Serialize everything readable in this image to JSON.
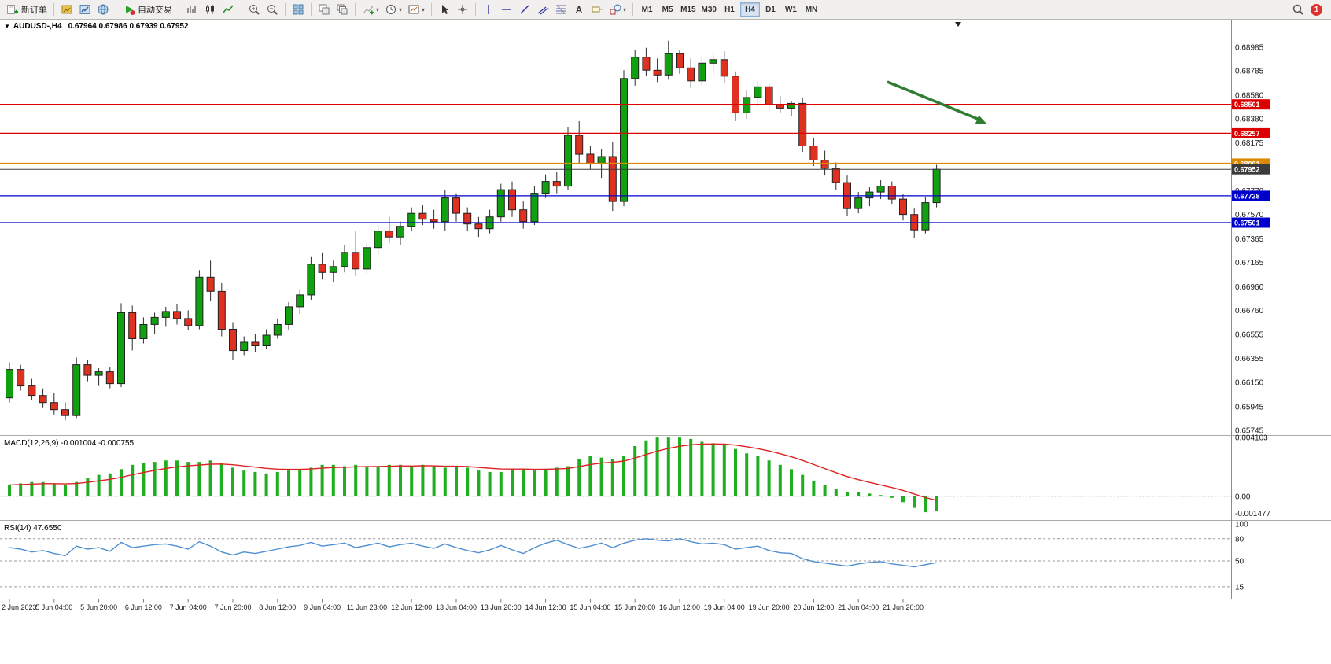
{
  "toolbar": {
    "new_order": "新订单",
    "auto_trading": "自动交易",
    "timeframes": [
      "M1",
      "M5",
      "M15",
      "M30",
      "H1",
      "H4",
      "D1",
      "W1",
      "MN"
    ],
    "active_timeframe": "H4",
    "notification_count": "1"
  },
  "chart": {
    "title": "AUDUSD-,H4",
    "ohlc": "0.67964 0.67986 0.67939 0.67952",
    "arrow_color": "#2e7d32",
    "axis_labels": [
      "0.68985",
      "0.68785",
      "0.68580",
      "0.68380",
      "0.68175",
      "0.67975",
      "0.67770",
      "0.67570",
      "0.67365",
      "0.67165",
      "0.66960",
      "0.66760",
      "0.66555",
      "0.66355",
      "0.66150",
      "0.65945",
      "0.65745"
    ],
    "levels": [
      {
        "name": "resistance-1",
        "price": 0.68501,
        "label": "0.68501",
        "color": "#dd0000",
        "width": 1.3
      },
      {
        "name": "resistance-2",
        "price": 0.68257,
        "label": "0.68257",
        "color": "#dd0000",
        "width": 1.3
      },
      {
        "name": "pivot",
        "price": 0.68001,
        "label": "0.68001",
        "color": "#d98a00",
        "width": 2
      },
      {
        "name": "current-price",
        "price": 0.67952,
        "label": "0.67952",
        "color": "#3c3c3c",
        "width": 1
      },
      {
        "name": "support-1",
        "price": 0.67728,
        "label": "0.67728",
        "color": "#0000cc",
        "width": 1.3
      },
      {
        "name": "support-2",
        "price": 0.67501,
        "label": "0.67501",
        "color": "#0000cc",
        "width": 1.3
      }
    ],
    "time_labels": [
      "2 Jun 2023",
      "5 Jun 04:00",
      "5 Jun 20:00",
      "6 Jun 12:00",
      "7 Jun 04:00",
      "7 Jun 20:00",
      "8 Jun 12:00",
      "9 Jun 04:00",
      "11 Jun 23:00",
      "12 Jun 12:00",
      "13 Jun 04:00",
      "13 Jun 20:00",
      "14 Jun 12:00",
      "15 Jun 04:00",
      "15 Jun 20:00",
      "16 Jun 12:00",
      "19 Jun 04:00",
      "19 Jun 20:00",
      "20 Jun 12:00",
      "21 Jun 04:00",
      "21 Jun 20:00"
    ]
  },
  "macd_panel": {
    "label": "MACD(12,26,9) -0.001004 -0.000755",
    "axis": [
      "0.004103",
      "0.00",
      "-0.001477"
    ]
  },
  "rsi_panel": {
    "label": "RSI(14) 47.6550",
    "axis": [
      "100",
      "80",
      "50",
      "15"
    ]
  },
  "chart_data": {
    "type": "candlestick",
    "symbol": "AUDUSD",
    "timeframe": "H4",
    "ylim_main": [
      0.65725,
      0.69211
    ],
    "candles": [
      [
        0.6602,
        0.6632,
        0.6598,
        0.6626
      ],
      [
        0.6626,
        0.663,
        0.6608,
        0.6612
      ],
      [
        0.6612,
        0.6618,
        0.66,
        0.6604
      ],
      [
        0.6604,
        0.661,
        0.6594,
        0.6598
      ],
      [
        0.6598,
        0.6606,
        0.6588,
        0.6592
      ],
      [
        0.6592,
        0.6598,
        0.6583,
        0.6587
      ],
      [
        0.6587,
        0.6636,
        0.6585,
        0.663
      ],
      [
        0.663,
        0.6634,
        0.6616,
        0.6621
      ],
      [
        0.6621,
        0.6627,
        0.6612,
        0.6624
      ],
      [
        0.6624,
        0.6628,
        0.661,
        0.6614
      ],
      [
        0.6614,
        0.6682,
        0.6611,
        0.6674
      ],
      [
        0.6674,
        0.668,
        0.6642,
        0.6652
      ],
      [
        0.6652,
        0.667,
        0.6648,
        0.6664
      ],
      [
        0.6664,
        0.6674,
        0.6656,
        0.667
      ],
      [
        0.667,
        0.6679,
        0.6662,
        0.6675
      ],
      [
        0.6675,
        0.6681,
        0.6664,
        0.6669
      ],
      [
        0.6669,
        0.6676,
        0.6659,
        0.6663
      ],
      [
        0.6663,
        0.671,
        0.666,
        0.6704
      ],
      [
        0.6704,
        0.6718,
        0.6684,
        0.6692
      ],
      [
        0.6692,
        0.6699,
        0.6654,
        0.666
      ],
      [
        0.666,
        0.6666,
        0.6634,
        0.6642
      ],
      [
        0.6642,
        0.6654,
        0.6638,
        0.6649
      ],
      [
        0.6649,
        0.6656,
        0.6641,
        0.6646
      ],
      [
        0.6646,
        0.666,
        0.6643,
        0.6655
      ],
      [
        0.6655,
        0.6669,
        0.6652,
        0.6664
      ],
      [
        0.6664,
        0.6683,
        0.6659,
        0.6679
      ],
      [
        0.6679,
        0.6694,
        0.6673,
        0.6689
      ],
      [
        0.6689,
        0.6721,
        0.6685,
        0.6715
      ],
      [
        0.6715,
        0.6725,
        0.6702,
        0.6708
      ],
      [
        0.6708,
        0.6718,
        0.67,
        0.6713
      ],
      [
        0.6713,
        0.6731,
        0.6708,
        0.6725
      ],
      [
        0.6725,
        0.6743,
        0.6705,
        0.6711
      ],
      [
        0.6711,
        0.6733,
        0.6707,
        0.6729
      ],
      [
        0.6729,
        0.6748,
        0.6723,
        0.6743
      ],
      [
        0.6743,
        0.6755,
        0.6733,
        0.6738
      ],
      [
        0.6738,
        0.6751,
        0.6731,
        0.6747
      ],
      [
        0.6747,
        0.6763,
        0.6743,
        0.6758
      ],
      [
        0.6758,
        0.6765,
        0.6748,
        0.6753
      ],
      [
        0.6753,
        0.6761,
        0.6745,
        0.6751
      ],
      [
        0.6751,
        0.6778,
        0.6743,
        0.6771
      ],
      [
        0.6771,
        0.6775,
        0.6751,
        0.6758
      ],
      [
        0.6758,
        0.6763,
        0.6743,
        0.6749
      ],
      [
        0.6749,
        0.6755,
        0.6738,
        0.6745
      ],
      [
        0.6745,
        0.6761,
        0.6741,
        0.6755
      ],
      [
        0.6755,
        0.6783,
        0.6751,
        0.6778
      ],
      [
        0.6778,
        0.6785,
        0.6755,
        0.6761
      ],
      [
        0.6761,
        0.6768,
        0.6745,
        0.6751
      ],
      [
        0.6751,
        0.6781,
        0.6748,
        0.6775
      ],
      [
        0.6775,
        0.6791,
        0.6771,
        0.6785
      ],
      [
        0.6785,
        0.6793,
        0.6775,
        0.6781
      ],
      [
        0.6781,
        0.6831,
        0.6778,
        0.6824
      ],
      [
        0.6824,
        0.6836,
        0.68,
        0.6808
      ],
      [
        0.6808,
        0.6815,
        0.6795,
        0.68
      ],
      [
        0.68,
        0.6812,
        0.6788,
        0.6806
      ],
      [
        0.6806,
        0.6818,
        0.676,
        0.6768
      ],
      [
        0.6768,
        0.6879,
        0.6764,
        0.6872
      ],
      [
        0.6872,
        0.6896,
        0.6866,
        0.689
      ],
      [
        0.689,
        0.6898,
        0.6874,
        0.6879
      ],
      [
        0.6879,
        0.6889,
        0.6869,
        0.6875
      ],
      [
        0.6875,
        0.6904,
        0.6871,
        0.6893
      ],
      [
        0.6893,
        0.6896,
        0.6876,
        0.6881
      ],
      [
        0.6881,
        0.6889,
        0.6864,
        0.687
      ],
      [
        0.687,
        0.6891,
        0.6866,
        0.6885
      ],
      [
        0.6885,
        0.6893,
        0.6875,
        0.6888
      ],
      [
        0.6888,
        0.6895,
        0.6868,
        0.6874
      ],
      [
        0.6874,
        0.6878,
        0.6836,
        0.6843
      ],
      [
        0.6843,
        0.6862,
        0.6838,
        0.6856
      ],
      [
        0.6856,
        0.687,
        0.6848,
        0.6865
      ],
      [
        0.6865,
        0.6868,
        0.6845,
        0.685
      ],
      [
        0.685,
        0.6857,
        0.6843,
        0.6847
      ],
      [
        0.6847,
        0.6853,
        0.684,
        0.6851
      ],
      [
        0.6851,
        0.6856,
        0.681,
        0.6815
      ],
      [
        0.6815,
        0.6822,
        0.6798,
        0.6803
      ],
      [
        0.6803,
        0.6811,
        0.679,
        0.6796
      ],
      [
        0.6796,
        0.6801,
        0.6778,
        0.6784
      ],
      [
        0.6784,
        0.679,
        0.6756,
        0.6762
      ],
      [
        0.6762,
        0.6776,
        0.6758,
        0.6771
      ],
      [
        0.6771,
        0.678,
        0.6764,
        0.6776
      ],
      [
        0.6776,
        0.6786,
        0.677,
        0.6781
      ],
      [
        0.6781,
        0.6785,
        0.6766,
        0.677
      ],
      [
        0.677,
        0.6774,
        0.6752,
        0.6757
      ],
      [
        0.6757,
        0.6762,
        0.6737,
        0.6744
      ],
      [
        0.6744,
        0.6772,
        0.6741,
        0.6767
      ],
      [
        0.6767,
        0.6799,
        0.6763,
        0.67952
      ]
    ],
    "indicators": {
      "macd": {
        "params": [
          12,
          26,
          9
        ],
        "current_macd": -0.001004,
        "current_signal": -0.000755,
        "range": [
          -0.001477,
          0.004103
        ],
        "histogram": [
          0.0008,
          0.0009,
          0.001,
          0.001,
          0.0009,
          0.0008,
          0.001,
          0.0013,
          0.0015,
          0.0016,
          0.0019,
          0.0022,
          0.0023,
          0.0024,
          0.0025,
          0.0025,
          0.0024,
          0.0024,
          0.0025,
          0.0023,
          0.002,
          0.0018,
          0.0017,
          0.0016,
          0.0017,
          0.0018,
          0.0019,
          0.002,
          0.0022,
          0.0022,
          0.0021,
          0.0022,
          0.0021,
          0.0021,
          0.0022,
          0.0022,
          0.0021,
          0.0022,
          0.0021,
          0.002,
          0.0021,
          0.002,
          0.0018,
          0.0017,
          0.0017,
          0.0019,
          0.0019,
          0.0018,
          0.0019,
          0.002,
          0.0021,
          0.0026,
          0.0028,
          0.0027,
          0.0026,
          0.0028,
          0.0035,
          0.0039,
          0.0041,
          0.0041,
          0.0041,
          0.004,
          0.0038,
          0.0037,
          0.0036,
          0.0033,
          0.003,
          0.0028,
          0.0025,
          0.0022,
          0.0019,
          0.0015,
          0.0011,
          0.0008,
          0.0005,
          0.0003,
          0.0003,
          0.0002,
          0.0001,
          -0.0001,
          -0.0004,
          -0.0008,
          -0.0011,
          -0.001
        ]
      },
      "rsi": {
        "period": 14,
        "current": 47.655,
        "levels": [
          80,
          50,
          15
        ],
        "values": [
          68,
          66,
          62,
          64,
          60,
          57,
          70,
          66,
          68,
          63,
          75,
          68,
          70,
          72,
          73,
          70,
          66,
          76,
          70,
          62,
          58,
          62,
          60,
          63,
          66,
          69,
          71,
          75,
          70,
          72,
          74,
          68,
          71,
          74,
          69,
          72,
          74,
          70,
          67,
          73,
          68,
          64,
          61,
          65,
          71,
          65,
          60,
          68,
          74,
          78,
          72,
          67,
          70,
          74,
          68,
          74,
          78,
          80,
          78,
          77,
          80,
          76,
          73,
          74,
          72,
          66,
          68,
          70,
          64,
          61,
          60,
          53,
          49,
          47,
          45,
          43,
          46,
          48,
          49,
          46,
          44,
          42,
          45,
          47.7
        ]
      }
    }
  }
}
